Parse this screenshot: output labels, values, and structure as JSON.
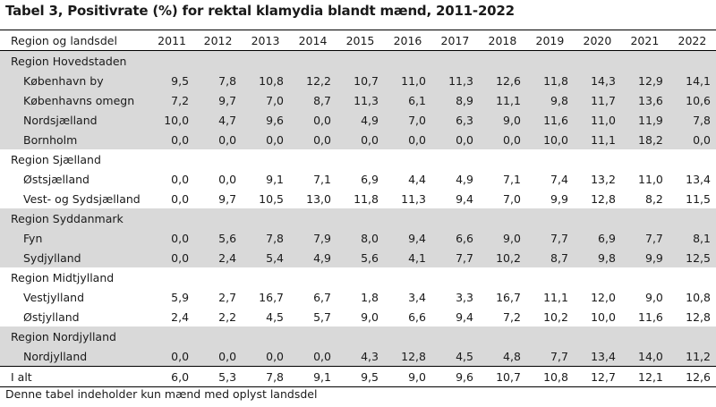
{
  "title": "Tabel 3, Positivrate (%) for rektal klamydia blandt mænd, 2011-2022",
  "header": {
    "label": "Region og landsdel",
    "years": [
      "2011",
      "2012",
      "2013",
      "2014",
      "2015",
      "2016",
      "2017",
      "2018",
      "2019",
      "2020",
      "2021",
      "2022"
    ]
  },
  "regions": [
    {
      "name": "Region Hovedstaden",
      "rows": [
        {
          "name": "København by",
          "values": [
            "9,5",
            "7,8",
            "10,8",
            "12,2",
            "10,7",
            "11,0",
            "11,3",
            "12,6",
            "11,8",
            "14,3",
            "12,9",
            "14,1"
          ]
        },
        {
          "name": "Københavns omegn",
          "values": [
            "7,2",
            "9,7",
            "7,0",
            "8,7",
            "11,3",
            "6,1",
            "8,9",
            "11,1",
            "9,8",
            "11,7",
            "13,6",
            "10,6"
          ]
        },
        {
          "name": "Nordsjælland",
          "values": [
            "10,0",
            "4,7",
            "9,6",
            "0,0",
            "4,9",
            "7,0",
            "6,3",
            "9,0",
            "11,6",
            "11,0",
            "11,9",
            "7,8"
          ]
        },
        {
          "name": "Bornholm",
          "values": [
            "0,0",
            "0,0",
            "0,0",
            "0,0",
            "0,0",
            "0,0",
            "0,0",
            "0,0",
            "10,0",
            "11,1",
            "18,2",
            "0,0"
          ]
        }
      ]
    },
    {
      "name": "Region Sjælland",
      "rows": [
        {
          "name": "Østsjælland",
          "values": [
            "0,0",
            "0,0",
            "9,1",
            "7,1",
            "6,9",
            "4,4",
            "4,9",
            "7,1",
            "7,4",
            "13,2",
            "11,0",
            "13,4"
          ]
        },
        {
          "name": "Vest- og Sydsjælland",
          "values": [
            "0,0",
            "9,7",
            "10,5",
            "13,0",
            "11,8",
            "11,3",
            "9,4",
            "7,0",
            "9,9",
            "12,8",
            "8,2",
            "11,5"
          ]
        }
      ]
    },
    {
      "name": "Region Syddanmark",
      "rows": [
        {
          "name": "Fyn",
          "values": [
            "0,0",
            "5,6",
            "7,8",
            "7,9",
            "8,0",
            "9,4",
            "6,6",
            "9,0",
            "7,7",
            "6,9",
            "7,7",
            "8,1"
          ]
        },
        {
          "name": "Sydjylland",
          "values": [
            "0,0",
            "2,4",
            "5,4",
            "4,9",
            "5,6",
            "4,1",
            "7,7",
            "10,2",
            "8,7",
            "9,8",
            "9,9",
            "12,5"
          ]
        }
      ]
    },
    {
      "name": "Region Midtjylland",
      "rows": [
        {
          "name": "Vestjylland",
          "values": [
            "5,9",
            "2,7",
            "16,7",
            "6,7",
            "1,8",
            "3,4",
            "3,3",
            "16,7",
            "11,1",
            "12,0",
            "9,0",
            "10,8"
          ]
        },
        {
          "name": "Østjylland",
          "values": [
            "2,4",
            "2,2",
            "4,5",
            "5,7",
            "9,0",
            "6,6",
            "9,4",
            "7,2",
            "10,2",
            "10,0",
            "11,6",
            "12,8"
          ]
        }
      ]
    },
    {
      "name": "Region Nordjylland",
      "rows": [
        {
          "name": "Nordjylland",
          "values": [
            "0,0",
            "0,0",
            "0,0",
            "0,0",
            "4,3",
            "12,8",
            "4,5",
            "4,8",
            "7,7",
            "13,4",
            "14,0",
            "11,2"
          ]
        }
      ]
    }
  ],
  "total": {
    "name": "I alt",
    "values": [
      "6,0",
      "5,3",
      "7,8",
      "9,1",
      "9,5",
      "9,0",
      "9,6",
      "10,7",
      "10,8",
      "12,7",
      "12,1",
      "12,6"
    ]
  },
  "footnote": "Denne tabel indeholder kun mænd med oplyst landsdel"
}
